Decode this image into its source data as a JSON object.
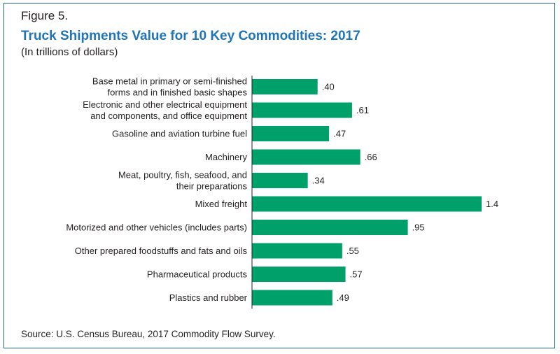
{
  "figure_label": "Figure 5.",
  "title": "Truck Shipments Value for 10 Key Commodities: 2017",
  "subtitle": "(In trillions of dollars)",
  "source": "Source: U.S. Census Bureau, 2017 Commodity Flow Survey.",
  "colors": {
    "bar": "#00a06a",
    "title": "#1f75b8",
    "frame": "#1f5f8b",
    "axis": "#231f20"
  },
  "chart_data": {
    "type": "bar",
    "orientation": "horizontal",
    "categories": [
      [
        "Base metal in primary or semi-finished",
        "forms and in finished basic shapes"
      ],
      [
        "Electronic and other electrical equipment",
        "and components, and office equipment"
      ],
      [
        "Gasoline and aviation turbine fuel"
      ],
      [
        "Machinery"
      ],
      [
        "Meat, poultry, fish, seafood, and",
        "their preparations"
      ],
      [
        "Mixed freight"
      ],
      [
        "Motorized and other vehicles (includes parts)"
      ],
      [
        "Other prepared foodstuffs and fats and oils"
      ],
      [
        "Pharmaceutical products"
      ],
      [
        "Plastics and rubber"
      ]
    ],
    "values": [
      0.4,
      0.61,
      0.47,
      0.66,
      0.34,
      1.4,
      0.95,
      0.55,
      0.57,
      0.49
    ],
    "value_labels": [
      ".40",
      ".61",
      ".47",
      ".66",
      ".34",
      "1.4",
      ".95",
      ".55",
      ".57",
      ".49"
    ],
    "xlim": [
      0,
      1.4
    ],
    "grid": false
  }
}
